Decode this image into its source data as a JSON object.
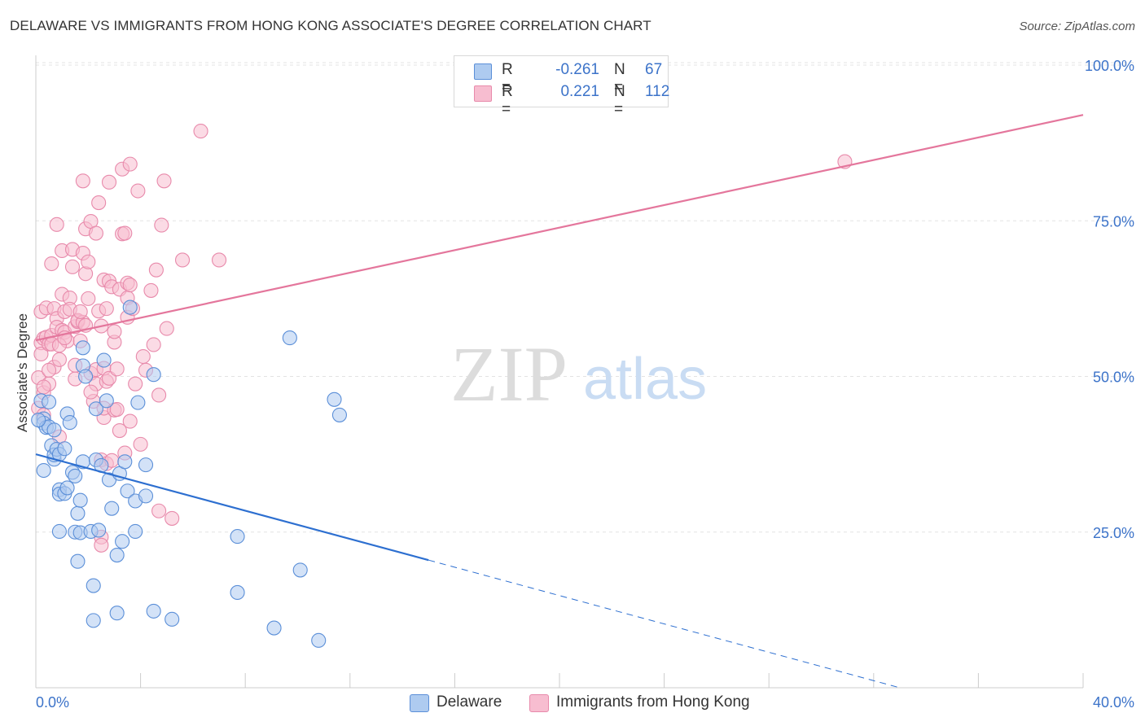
{
  "header": {
    "title": "DELAWARE VS IMMIGRANTS FROM HONG KONG ASSOCIATE'S DEGREE CORRELATION CHART",
    "source": "Source: ZipAtlas.com"
  },
  "watermark": {
    "zip": "ZIP",
    "atlas": "atlas"
  },
  "colors": {
    "delaware_fill": "#aecbf0",
    "delaware_stroke": "#5b8fd8",
    "delaware_line": "#2d6fd0",
    "hk_fill": "#f7bdd0",
    "hk_stroke": "#e88aab",
    "hk_line": "#e4769c",
    "value_blue": "#3c73c9",
    "grid": "#e3e3e3"
  },
  "legend": {
    "rows": [
      {
        "r_label": "R =",
        "r_value": "-0.261",
        "n_label": "N =",
        "n_value": "67"
      },
      {
        "r_label": "R =",
        "r_value": "0.221",
        "n_label": "N =",
        "n_value": "112"
      }
    ]
  },
  "bottom_legend": {
    "delaware": "Delaware",
    "hong_kong": "Immigrants from Hong Kong"
  },
  "chart_data": {
    "type": "scatter",
    "title": "DELAWARE VS IMMIGRANTS FROM HONG KONG ASSOCIATE'S DEGREE CORRELATION CHART",
    "xlabel": "",
    "ylabel": "Associate's Degree",
    "xlim": [
      0,
      40
    ],
    "ylim": [
      0,
      100
    ],
    "x_tick_labels": [
      "0.0%",
      "40.0%"
    ],
    "y_ticks": [
      25,
      50,
      75,
      100
    ],
    "y_tick_labels": [
      "25.0%",
      "50.0%",
      "75.0%",
      "100.0%"
    ],
    "grid": true,
    "series": [
      {
        "name": "Delaware",
        "r": -0.261,
        "n": 67,
        "trend": {
          "x0": 0,
          "y0": 37.5,
          "x1": 15,
          "y1": 20.5,
          "dash_x1": 33,
          "dash_y1": 0
        },
        "points": [
          [
            0.2,
            46.1
          ],
          [
            0.3,
            43.2
          ],
          [
            0.3,
            42.5
          ],
          [
            0.3,
            34.9
          ],
          [
            0.4,
            41.8
          ],
          [
            0.5,
            41.9
          ],
          [
            0.5,
            45.9
          ],
          [
            0.6,
            38.9
          ],
          [
            0.7,
            36.7
          ],
          [
            0.7,
            41.4
          ],
          [
            0.7,
            37.4
          ],
          [
            0.8,
            38.3
          ],
          [
            0.9,
            37.5
          ],
          [
            0.9,
            25.1
          ],
          [
            0.9,
            31.8
          ],
          [
            0.9,
            31.1
          ],
          [
            1.1,
            38.4
          ],
          [
            1.1,
            31.2
          ],
          [
            1.2,
            44.0
          ],
          [
            1.2,
            32.1
          ],
          [
            1.3,
            42.6
          ],
          [
            1.4,
            34.6
          ],
          [
            1.5,
            25.0
          ],
          [
            1.5,
            34.0
          ],
          [
            1.6,
            28.0
          ],
          [
            1.6,
            20.3
          ],
          [
            1.7,
            30.1
          ],
          [
            1.7,
            24.9
          ],
          [
            1.8,
            54.6
          ],
          [
            1.8,
            51.7
          ],
          [
            1.8,
            36.3
          ],
          [
            1.9,
            50.0
          ],
          [
            2.1,
            25.1
          ],
          [
            2.2,
            16.4
          ],
          [
            2.2,
            10.8
          ],
          [
            2.3,
            36.6
          ],
          [
            2.3,
            44.8
          ],
          [
            2.4,
            25.3
          ],
          [
            2.5,
            35.7
          ],
          [
            2.6,
            52.6
          ],
          [
            2.7,
            46.1
          ],
          [
            2.8,
            33.4
          ],
          [
            2.9,
            28.8
          ],
          [
            3.1,
            21.3
          ],
          [
            3.1,
            12.0
          ],
          [
            3.2,
            34.4
          ],
          [
            3.3,
            23.5
          ],
          [
            3.4,
            36.3
          ],
          [
            3.5,
            31.6
          ],
          [
            3.6,
            61.1
          ],
          [
            3.8,
            30.0
          ],
          [
            3.8,
            25.1
          ],
          [
            3.9,
            45.8
          ],
          [
            4.2,
            35.8
          ],
          [
            4.2,
            30.8
          ],
          [
            4.5,
            50.3
          ],
          [
            4.5,
            12.3
          ],
          [
            5.2,
            11.0
          ],
          [
            7.7,
            24.3
          ],
          [
            7.7,
            15.3
          ],
          [
            9.1,
            9.6
          ],
          [
            9.7,
            56.2
          ],
          [
            10.1,
            18.9
          ],
          [
            10.8,
            7.6
          ],
          [
            11.4,
            46.3
          ],
          [
            11.6,
            43.8
          ],
          [
            0.1,
            43.0
          ]
        ]
      },
      {
        "name": "Immigrants from Hong Kong",
        "r": 0.221,
        "n": 112,
        "trend": {
          "x0": 0,
          "y0": 55.8,
          "x1": 40,
          "y1": 92.0
        },
        "points": [
          [
            0.1,
            44.9
          ],
          [
            0.1,
            49.8
          ],
          [
            0.2,
            55.4
          ],
          [
            0.2,
            53.6
          ],
          [
            0.2,
            60.4
          ],
          [
            0.3,
            56.1
          ],
          [
            0.3,
            47.4
          ],
          [
            0.3,
            43.8
          ],
          [
            0.4,
            56.3
          ],
          [
            0.4,
            61.0
          ],
          [
            0.5,
            48.8
          ],
          [
            0.5,
            55.2
          ],
          [
            0.6,
            56.6
          ],
          [
            0.6,
            68.1
          ],
          [
            0.6,
            55.2
          ],
          [
            0.7,
            60.9
          ],
          [
            0.7,
            51.5
          ],
          [
            0.8,
            59.3
          ],
          [
            0.8,
            74.4
          ],
          [
            0.8,
            57.9
          ],
          [
            0.9,
            52.7
          ],
          [
            0.9,
            40.3
          ],
          [
            1.0,
            63.2
          ],
          [
            1.0,
            70.2
          ],
          [
            1.0,
            57.4
          ],
          [
            1.1,
            60.4
          ],
          [
            1.1,
            57.1
          ],
          [
            1.2,
            55.7
          ],
          [
            1.3,
            62.6
          ],
          [
            1.3,
            60.8
          ],
          [
            1.4,
            70.4
          ],
          [
            1.4,
            67.6
          ],
          [
            1.5,
            49.6
          ],
          [
            1.5,
            51.8
          ],
          [
            1.5,
            58.0
          ],
          [
            1.6,
            58.8
          ],
          [
            1.6,
            59.0
          ],
          [
            1.7,
            55.7
          ],
          [
            1.8,
            69.8
          ],
          [
            1.8,
            58.7
          ],
          [
            1.8,
            81.4
          ],
          [
            1.9,
            73.7
          ],
          [
            1.9,
            66.5
          ],
          [
            1.9,
            58.2
          ],
          [
            2.0,
            68.4
          ],
          [
            2.0,
            62.5
          ],
          [
            2.1,
            50.5
          ],
          [
            2.1,
            74.9
          ],
          [
            2.2,
            46.0
          ],
          [
            2.3,
            73.0
          ],
          [
            2.3,
            51.1
          ],
          [
            2.3,
            48.8
          ],
          [
            2.4,
            60.5
          ],
          [
            2.4,
            77.9
          ],
          [
            2.5,
            36.6
          ],
          [
            2.5,
            24.2
          ],
          [
            2.5,
            22.9
          ],
          [
            2.5,
            58.1
          ],
          [
            2.6,
            43.4
          ],
          [
            2.6,
            44.9
          ],
          [
            2.6,
            51.3
          ],
          [
            2.6,
            65.5
          ],
          [
            2.7,
            60.9
          ],
          [
            2.7,
            49.2
          ],
          [
            2.7,
            36.0
          ],
          [
            2.8,
            81.2
          ],
          [
            2.8,
            65.3
          ],
          [
            2.8,
            49.7
          ],
          [
            2.9,
            64.4
          ],
          [
            2.9,
            36.5
          ],
          [
            3.0,
            44.6
          ],
          [
            3.0,
            55.5
          ],
          [
            3.1,
            51.2
          ],
          [
            3.1,
            44.7
          ],
          [
            3.2,
            64.0
          ],
          [
            3.2,
            41.3
          ],
          [
            3.3,
            72.9
          ],
          [
            3.3,
            83.3
          ],
          [
            3.4,
            73.0
          ],
          [
            3.4,
            37.7
          ],
          [
            3.5,
            62.6
          ],
          [
            3.5,
            65.0
          ],
          [
            3.5,
            59.5
          ],
          [
            3.6,
            64.7
          ],
          [
            3.6,
            84.1
          ],
          [
            3.6,
            42.8
          ],
          [
            3.7,
            60.9
          ],
          [
            3.8,
            48.8
          ],
          [
            3.9,
            79.8
          ],
          [
            4.0,
            39.1
          ],
          [
            4.1,
            53.2
          ],
          [
            4.2,
            51.0
          ],
          [
            4.4,
            63.8
          ],
          [
            4.5,
            55.1
          ],
          [
            4.6,
            67.1
          ],
          [
            4.7,
            47.0
          ],
          [
            4.7,
            28.4
          ],
          [
            4.8,
            74.3
          ],
          [
            4.9,
            81.4
          ],
          [
            5.0,
            57.7
          ],
          [
            5.2,
            27.2
          ],
          [
            5.6,
            68.7
          ],
          [
            6.3,
            89.4
          ],
          [
            7.0,
            68.7
          ],
          [
            30.9,
            84.5
          ],
          [
            0.3,
            48.3
          ],
          [
            0.5,
            51.0
          ],
          [
            0.9,
            55.0
          ],
          [
            1.1,
            56.2
          ],
          [
            1.7,
            60.4
          ],
          [
            2.1,
            47.5
          ],
          [
            3.0,
            57.2
          ]
        ]
      }
    ]
  }
}
